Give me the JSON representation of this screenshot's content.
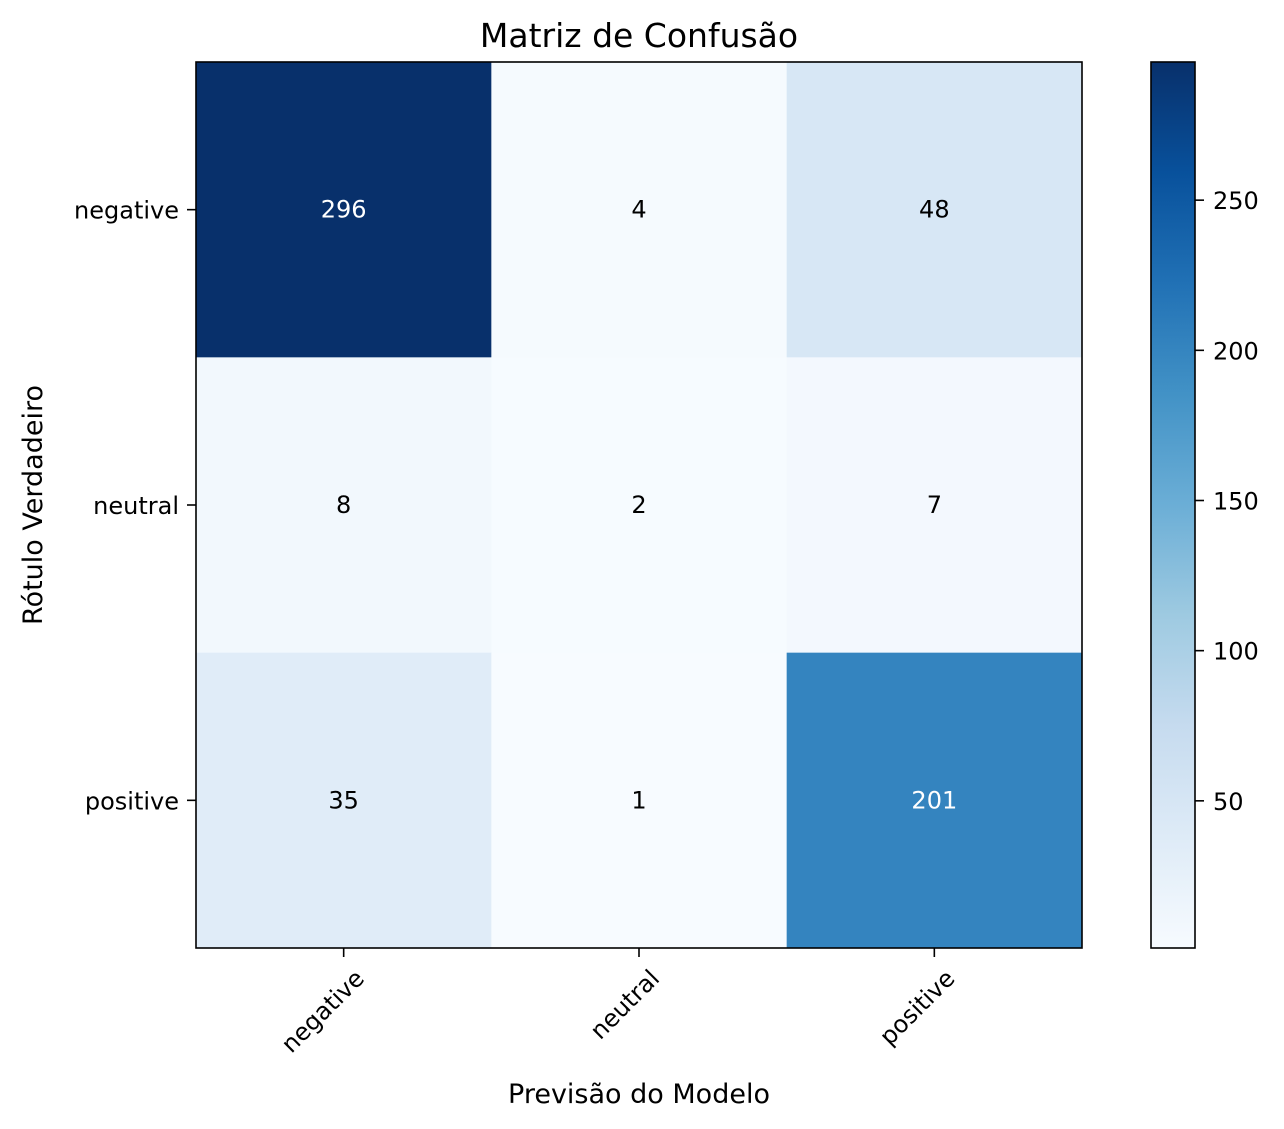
{
  "chart_data": {
    "type": "heatmap",
    "title": "Matriz de Confusão",
    "xlabel": "Previsão do Modelo",
    "ylabel": "Rótulo Verdadeiro",
    "x_categories": [
      "negative",
      "neutral",
      "positive"
    ],
    "y_categories": [
      "negative",
      "neutral",
      "positive"
    ],
    "values": [
      [
        296,
        4,
        48
      ],
      [
        8,
        2,
        7
      ],
      [
        35,
        1,
        201
      ]
    ],
    "colormap": "Blues",
    "color_range": [
      1,
      296
    ],
    "colorbar_ticks": [
      50,
      100,
      150,
      200,
      250
    ],
    "text_color_light": "#ffffff",
    "text_color_dark": "#000000",
    "grid": false
  }
}
